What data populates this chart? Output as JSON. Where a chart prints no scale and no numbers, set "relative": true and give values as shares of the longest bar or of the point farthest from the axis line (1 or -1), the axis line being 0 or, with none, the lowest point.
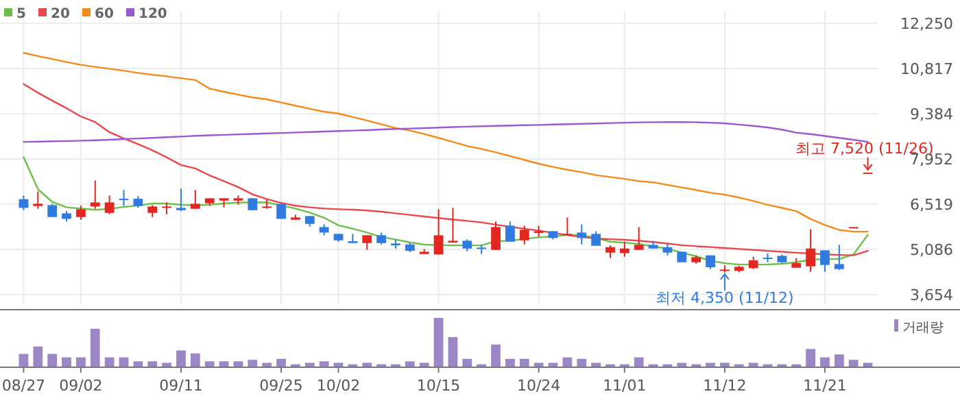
{
  "chart_data": [
    {
      "type": "candlestick",
      "categories": [
        "08/27",
        null,
        null,
        null,
        "09/02",
        null,
        null,
        null,
        null,
        null,
        null,
        "09/11",
        null,
        null,
        null,
        null,
        null,
        null,
        "09/25",
        null,
        null,
        null,
        "10/02",
        null,
        null,
        null,
        null,
        null,
        null,
        "10/15",
        null,
        null,
        null,
        null,
        null,
        null,
        "10/24",
        null,
        null,
        null,
        null,
        null,
        "11/01",
        null,
        null,
        null,
        null,
        null,
        null,
        "11/12",
        null,
        null,
        null,
        null,
        null,
        null,
        "11/21",
        null,
        null,
        null
      ],
      "ohlc": [
        [
          6677,
          6792,
          6329,
          6402
        ],
        [
          6460,
          6923,
          6373,
          6532
        ],
        [
          6489,
          6532,
          6112,
          6112
        ],
        [
          6228,
          6301,
          5968,
          6054
        ],
        [
          6112,
          6474,
          6026,
          6358
        ],
        [
          6445,
          7270,
          6373,
          6575
        ],
        [
          6243,
          6792,
          6199,
          6575
        ],
        [
          6691,
          6966,
          6460,
          6677
        ],
        [
          6691,
          6778,
          6402,
          6460
        ],
        [
          6243,
          6489,
          6112,
          6445
        ],
        [
          6416,
          6575,
          6199,
          6445
        ],
        [
          6402,
          7010,
          6301,
          6329
        ],
        [
          6373,
          6966,
          6373,
          6532
        ],
        [
          6546,
          6706,
          6460,
          6706
        ],
        [
          6633,
          6706,
          6416,
          6706
        ],
        [
          6633,
          6792,
          6503,
          6706
        ],
        [
          6706,
          6706,
          6329,
          6329
        ],
        [
          6402,
          6662,
          6373,
          6445
        ],
        [
          6532,
          6532,
          6054,
          6054
        ],
        [
          6026,
          6185,
          6026,
          6098
        ],
        [
          6141,
          6141,
          5809,
          5895
        ],
        [
          5794,
          5881,
          5534,
          5620
        ],
        [
          5577,
          5577,
          5331,
          5374
        ],
        [
          5345,
          5577,
          5288,
          5288
        ],
        [
          5288,
          5534,
          5071,
          5534
        ],
        [
          5534,
          5620,
          5244,
          5288
        ],
        [
          5273,
          5389,
          5114,
          5215
        ],
        [
          5244,
          5288,
          4998,
          5042
        ],
        [
          4940,
          5100,
          4940,
          5013
        ],
        [
          4926,
          6358,
          4926,
          5534
        ],
        [
          5302,
          6402,
          5302,
          5360
        ],
        [
          5360,
          5403,
          5027,
          5114
        ],
        [
          5143,
          5230,
          4940,
          5100
        ],
        [
          5071,
          5968,
          5071,
          5794
        ],
        [
          5838,
          5968,
          5331,
          5331
        ],
        [
          5374,
          5838,
          5244,
          5707
        ],
        [
          5606,
          5838,
          5490,
          5664
        ],
        [
          5664,
          5664,
          5403,
          5447
        ],
        [
          5548,
          6098,
          5548,
          5577
        ],
        [
          5620,
          5881,
          5244,
          5447
        ],
        [
          5577,
          5664,
          5201,
          5201
        ],
        [
          4984,
          5215,
          4810,
          5157
        ],
        [
          4969,
          5331,
          4853,
          5114
        ],
        [
          5071,
          5794,
          5071,
          5230
        ],
        [
          5230,
          5360,
          5114,
          5114
        ],
        [
          5157,
          5273,
          4897,
          4984
        ],
        [
          5013,
          5013,
          4680,
          4680
        ],
        [
          4680,
          4897,
          4636,
          4839
        ],
        [
          4897,
          4897,
          4463,
          4521
        ],
        [
          4419,
          4578,
          4350,
          4448
        ],
        [
          4405,
          4564,
          4361,
          4535
        ],
        [
          4492,
          4853,
          4463,
          4738
        ],
        [
          4824,
          4955,
          4680,
          4810
        ],
        [
          4882,
          4926,
          4651,
          4680
        ],
        [
          4506,
          4810,
          4506,
          4651
        ],
        [
          4550,
          5722,
          4376,
          5114
        ],
        [
          5056,
          5056,
          4376,
          4593
        ],
        [
          4622,
          5230,
          4434,
          4463
        ],
        [
          5794,
          5794,
          5794,
          5794
        ],
        [
          7520,
          7520,
          7520,
          7520
        ]
      ],
      "series": [
        {
          "type": "line",
          "name": "5",
          "color": "#6cc04a",
          "values": [
            8008,
            6995,
            6590,
            6420,
            6380,
            6340,
            6370,
            6430,
            6480,
            6540,
            6540,
            6500,
            6480,
            6500,
            6540,
            6570,
            6575,
            6575,
            6480,
            6380,
            6250,
            6090,
            5850,
            5740,
            5620,
            5480,
            5400,
            5310,
            5240,
            5220,
            5215,
            5215,
            5215,
            5350,
            5360,
            5420,
            5470,
            5500,
            5545,
            5540,
            5450,
            5331,
            5300,
            5255,
            5180,
            5110,
            4980,
            4870,
            4723,
            4650,
            4607,
            4607,
            4610,
            4630,
            4680,
            4760,
            4781,
            4781,
            4926,
            5548
          ]
        },
        {
          "type": "line",
          "name": "20",
          "color": "#e8474d",
          "values": [
            10323,
            10050,
            9800,
            9560,
            9298,
            9120,
            8800,
            8600,
            8420,
            8225,
            8000,
            7760,
            7650,
            7430,
            7250,
            7060,
            6830,
            6680,
            6560,
            6470,
            6420,
            6380,
            6360,
            6345,
            6320,
            6280,
            6230,
            6180,
            6130,
            6080,
            6030,
            5990,
            5940,
            5870,
            5800,
            5740,
            5680,
            5610,
            5540,
            5480,
            5430,
            5410,
            5390,
            5360,
            5320,
            5270,
            5220,
            5186,
            5160,
            5130,
            5100,
            5070,
            5040,
            5010,
            4980,
            4955,
            4930,
            4910,
            4900,
            5042
          ]
        },
        {
          "type": "line",
          "name": "60",
          "color": "#f28a1c",
          "values": [
            11312,
            11210,
            11120,
            11020,
            10935,
            10870,
            10810,
            10750,
            10679,
            10620,
            10570,
            10510,
            10450,
            10180,
            10080,
            9990,
            9900,
            9840,
            9740,
            9640,
            9540,
            9450,
            9390,
            9280,
            9170,
            9050,
            8930,
            8850,
            8740,
            8620,
            8490,
            8360,
            8270,
            8160,
            8040,
            7920,
            7800,
            7700,
            7610,
            7530,
            7440,
            7380,
            7320,
            7250,
            7210,
            7130,
            7050,
            6970,
            6880,
            6820,
            6730,
            6620,
            6500,
            6400,
            6300,
            6050,
            5860,
            5700,
            5649,
            5649
          ]
        },
        {
          "type": "line",
          "name": "120",
          "color": "#9b59d0",
          "values": [
            8491,
            8500,
            8510,
            8520,
            8530,
            8545,
            8560,
            8580,
            8600,
            8620,
            8640,
            8660,
            8686,
            8700,
            8715,
            8730,
            8745,
            8760,
            8775,
            8790,
            8805,
            8820,
            8835,
            8850,
            8865,
            8886,
            8900,
            8915,
            8930,
            8945,
            8960,
            8975,
            8990,
            9000,
            9010,
            9020,
            9030,
            9042,
            9055,
            9065,
            9075,
            9090,
            9100,
            9110,
            9115,
            9120,
            9120,
            9115,
            9100,
            9081,
            9040,
            9000,
            8950,
            8880,
            8786,
            8740,
            8680,
            8620,
            8560,
            8491
          ]
        }
      ],
      "ylim": [
        3654,
        12250
      ],
      "yticks": [
        {
          "value": 3654,
          "label": "3,654"
        },
        {
          "value": 5086,
          "label": "5,086"
        },
        {
          "value": 6519,
          "label": "6,519"
        },
        {
          "value": 7952,
          "label": "7,952"
        },
        {
          "value": 9384,
          "label": "9,384"
        },
        {
          "value": 10817,
          "label": "10,817"
        },
        {
          "value": 12250,
          "label": "12,250"
        }
      ],
      "grid": true,
      "legend": "top left",
      "tick_labels": "y",
      "annotations": [
        {
          "text": "최고 7,520 (11/26)",
          "y": 7520
        },
        {
          "text": "최저 4,350 (11/12)",
          "x": "11/12",
          "y": 4350
        }
      ]
    },
    {
      "type": "bar",
      "relative": true,
      "legend": "top right",
      "tick_labels": "x",
      "categories": [
        "08/27",
        null,
        null,
        null,
        "09/02",
        null,
        null,
        null,
        null,
        null,
        null,
        "09/11",
        null,
        null,
        null,
        null,
        null,
        null,
        "09/25",
        null,
        null,
        null,
        "10/02",
        null,
        null,
        null,
        null,
        null,
        null,
        "10/15",
        null,
        null,
        null,
        null,
        null,
        null,
        "10/24",
        null,
        null,
        null,
        null,
        null,
        "11/01",
        null,
        null,
        null,
        null,
        null,
        null,
        "11/12",
        null,
        null,
        null,
        null,
        null,
        null,
        "11/21",
        null,
        null,
        null
      ],
      "series": [
        {
          "name": "거래량",
          "color": "#9b87c6",
          "values": [
            0.27,
            0.42,
            0.27,
            0.2,
            0.2,
            0.78,
            0.2,
            0.2,
            0.12,
            0.12,
            0.09,
            0.34,
            0.28,
            0.12,
            0.12,
            0.12,
            0.15,
            0.09,
            0.17,
            0.06,
            0.09,
            0.12,
            0.09,
            0.06,
            0.09,
            0.06,
            0.06,
            0.12,
            0.09,
            1,
            0.61,
            0.17,
            0.06,
            0.46,
            0.17,
            0.17,
            0.09,
            0.09,
            0.2,
            0.17,
            0.09,
            0.06,
            0.06,
            0.2,
            0.06,
            0.06,
            0.09,
            0.06,
            0.09,
            0.09,
            0.06,
            0.09,
            0.06,
            0.06,
            0.06,
            0.37,
            0.2,
            0.26,
            0.15,
            0.09
          ]
        }
      ]
    }
  ]
}
